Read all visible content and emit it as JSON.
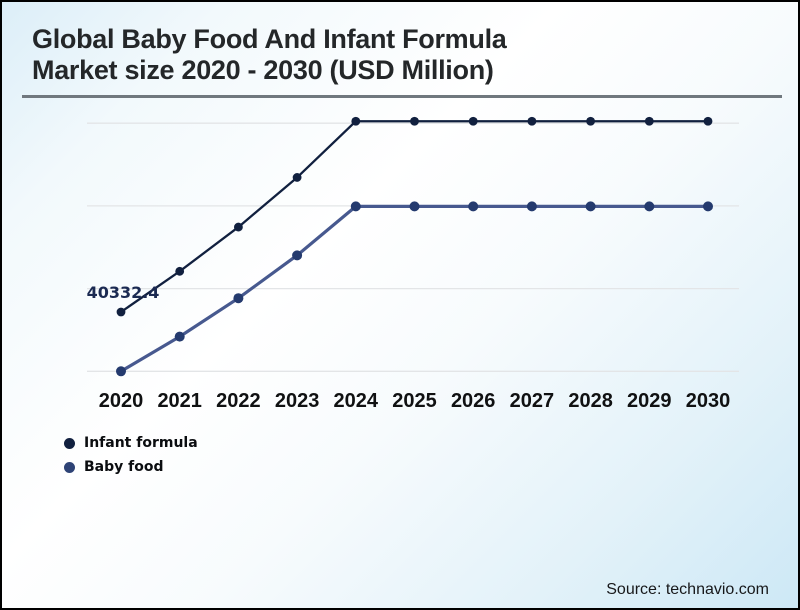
{
  "page": {
    "title_line1": "Global Baby Food And Infant Formula",
    "title_line2": "Market size 2020 - 2030 (USD Million)",
    "source": "Source: technavio.com"
  },
  "legend": {
    "items": [
      {
        "label": "Infant formula",
        "color": "#11203f"
      },
      {
        "label": "Baby food",
        "color": "#2e4376"
      }
    ]
  },
  "chart_data": {
    "type": "line",
    "title": "Global Baby Food And Infant Formula Market size 2020 - 2030 (USD Million)",
    "units": "USD Million",
    "x": [
      2020,
      2021,
      2022,
      2023,
      2024,
      2025,
      2026,
      2027,
      2028,
      2029,
      2030
    ],
    "x_axis_labels": [
      "2020",
      "2021",
      "2022",
      "2023",
      "2024",
      "2025",
      "2026",
      "2027",
      "2028",
      "2029",
      "2030"
    ],
    "series": [
      {
        "name": "Infant formula",
        "color": "#11203f",
        "marker_color": "#11203f",
        "values": [
          40332.4,
          45250,
          50600,
          56600,
          63400,
          63400,
          63400,
          63400,
          63400,
          63400,
          63400
        ]
      },
      {
        "name": "Baby food",
        "color": "#47598f",
        "marker_color": "#243a6e",
        "values": [
          33160,
          37350,
          42000,
          47180,
          53100,
          53100,
          53100,
          53100,
          53100,
          53100,
          53100
        ]
      }
    ],
    "data_labels": [
      {
        "series": "Infant formula",
        "x": 2020,
        "text": "40332.4",
        "color": "#1b2a52"
      }
    ],
    "y_axis_visible": false,
    "gridline_values": [
      63160,
      53160,
      43160,
      33160
    ],
    "gridline_color": "#e3e5e7",
    "ylim": [
      30000,
      68000
    ],
    "grid": "horizontal-only",
    "legend_position": "bottom-left",
    "x_tick_color": "#101112"
  }
}
